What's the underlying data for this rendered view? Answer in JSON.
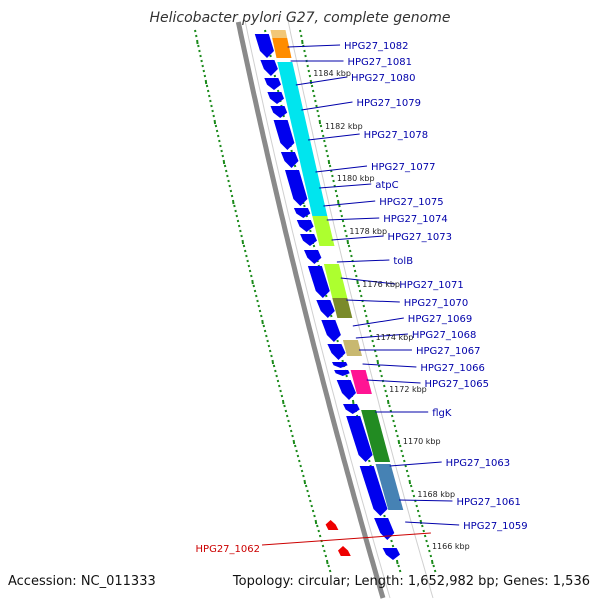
{
  "title": "Helicobacter pylori G27, complete genome",
  "footer": {
    "accession": "Accession: NC_011333",
    "summary": "Topology: circular; Length: 1,652,982 bp; Genes: 1,536"
  },
  "colors": {
    "forward_gene": "#0000ee",
    "reverse_gene": "#ee0000",
    "backbone": "#8a8a8a",
    "tick": "#1a8a1a",
    "label_forward": "#0000aa",
    "label_reverse": "#cc0000",
    "cog": [
      "#f2c777",
      "#ff8c00",
      "#00e5ee",
      "#adff2f",
      "#7a8a2a",
      "#c8b870",
      "#ff1493",
      "#228b22",
      "#4682b4"
    ]
  },
  "scale_labels": [
    "1184 kbp",
    "1182 kbp",
    "1180 kbp",
    "1178 kbp",
    "1176 kbp",
    "1174 kbp",
    "1172 kbp",
    "1170 kbp",
    "1168 kbp",
    "1166 kbp"
  ],
  "gene_labels": [
    {
      "text": "HPG27_1082",
      "strand": "forward"
    },
    {
      "text": "HPG27_1081",
      "strand": "forward"
    },
    {
      "text": "HPG27_1080",
      "strand": "forward"
    },
    {
      "text": "HPG27_1079",
      "strand": "forward"
    },
    {
      "text": "HPG27_1078",
      "strand": "forward"
    },
    {
      "text": "HPG27_1077",
      "strand": "forward"
    },
    {
      "text": "atpC",
      "strand": "forward"
    },
    {
      "text": "HPG27_1075",
      "strand": "forward"
    },
    {
      "text": "HPG27_1074",
      "strand": "forward"
    },
    {
      "text": "HPG27_1073",
      "strand": "forward"
    },
    {
      "text": "tolB",
      "strand": "forward"
    },
    {
      "text": "HPG27_1071",
      "strand": "forward"
    },
    {
      "text": "HPG27_1070",
      "strand": "forward"
    },
    {
      "text": "HPG27_1069",
      "strand": "forward"
    },
    {
      "text": "HPG27_1068",
      "strand": "forward"
    },
    {
      "text": "HPG27_1067",
      "strand": "forward"
    },
    {
      "text": "HPG27_1066",
      "strand": "forward"
    },
    {
      "text": "HPG27_1065",
      "strand": "forward"
    },
    {
      "text": "flgK",
      "strand": "forward"
    },
    {
      "text": "HPG27_1063",
      "strand": "forward"
    },
    {
      "text": "HPG27_1061",
      "strand": "forward"
    },
    {
      "text": "HPG27_1059",
      "strand": "forward"
    },
    {
      "text": "HPG27_1062",
      "strand": "reverse"
    }
  ]
}
